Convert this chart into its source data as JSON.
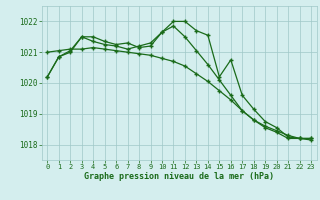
{
  "hours": [
    0,
    1,
    2,
    3,
    4,
    5,
    6,
    7,
    8,
    9,
    10,
    11,
    12,
    13,
    14,
    15,
    16,
    17,
    18,
    19,
    20,
    21,
    22,
    23
  ],
  "line1": [
    1020.2,
    1020.85,
    1021.0,
    1021.5,
    1021.5,
    1021.35,
    1021.25,
    1021.3,
    1021.15,
    1021.2,
    1021.65,
    1022.0,
    1022.0,
    1021.7,
    1021.55,
    1020.2,
    1020.75,
    1019.6,
    1019.15,
    1018.75,
    1018.55,
    1018.25,
    1018.2,
    1018.2
  ],
  "line2": [
    1020.2,
    1020.85,
    1021.05,
    1021.5,
    1021.35,
    1021.25,
    1021.2,
    1021.1,
    1021.2,
    1021.3,
    1021.65,
    1021.85,
    1021.5,
    1021.05,
    1020.6,
    1020.1,
    1019.6,
    1019.1,
    1018.8,
    1018.55,
    1018.4,
    1018.2,
    1018.2,
    1018.2
  ],
  "line3": [
    1021.0,
    1021.05,
    1021.1,
    1021.1,
    1021.15,
    1021.1,
    1021.05,
    1021.0,
    1020.95,
    1020.9,
    1020.8,
    1020.7,
    1020.55,
    1020.3,
    1020.05,
    1019.75,
    1019.45,
    1019.1,
    1018.8,
    1018.6,
    1018.45,
    1018.3,
    1018.2,
    1018.15
  ],
  "line_color": "#1a6b1a",
  "bg_color": "#d4eeee",
  "grid_color": "#a0c8c8",
  "xlabel": "Graphe pression niveau de la mer (hPa)",
  "ylim": [
    1017.5,
    1022.5
  ],
  "yticks": [
    1018,
    1019,
    1020,
    1021,
    1022
  ],
  "xticks": [
    0,
    1,
    2,
    3,
    4,
    5,
    6,
    7,
    8,
    9,
    10,
    11,
    12,
    13,
    14,
    15,
    16,
    17,
    18,
    19,
    20,
    21,
    22,
    23
  ]
}
